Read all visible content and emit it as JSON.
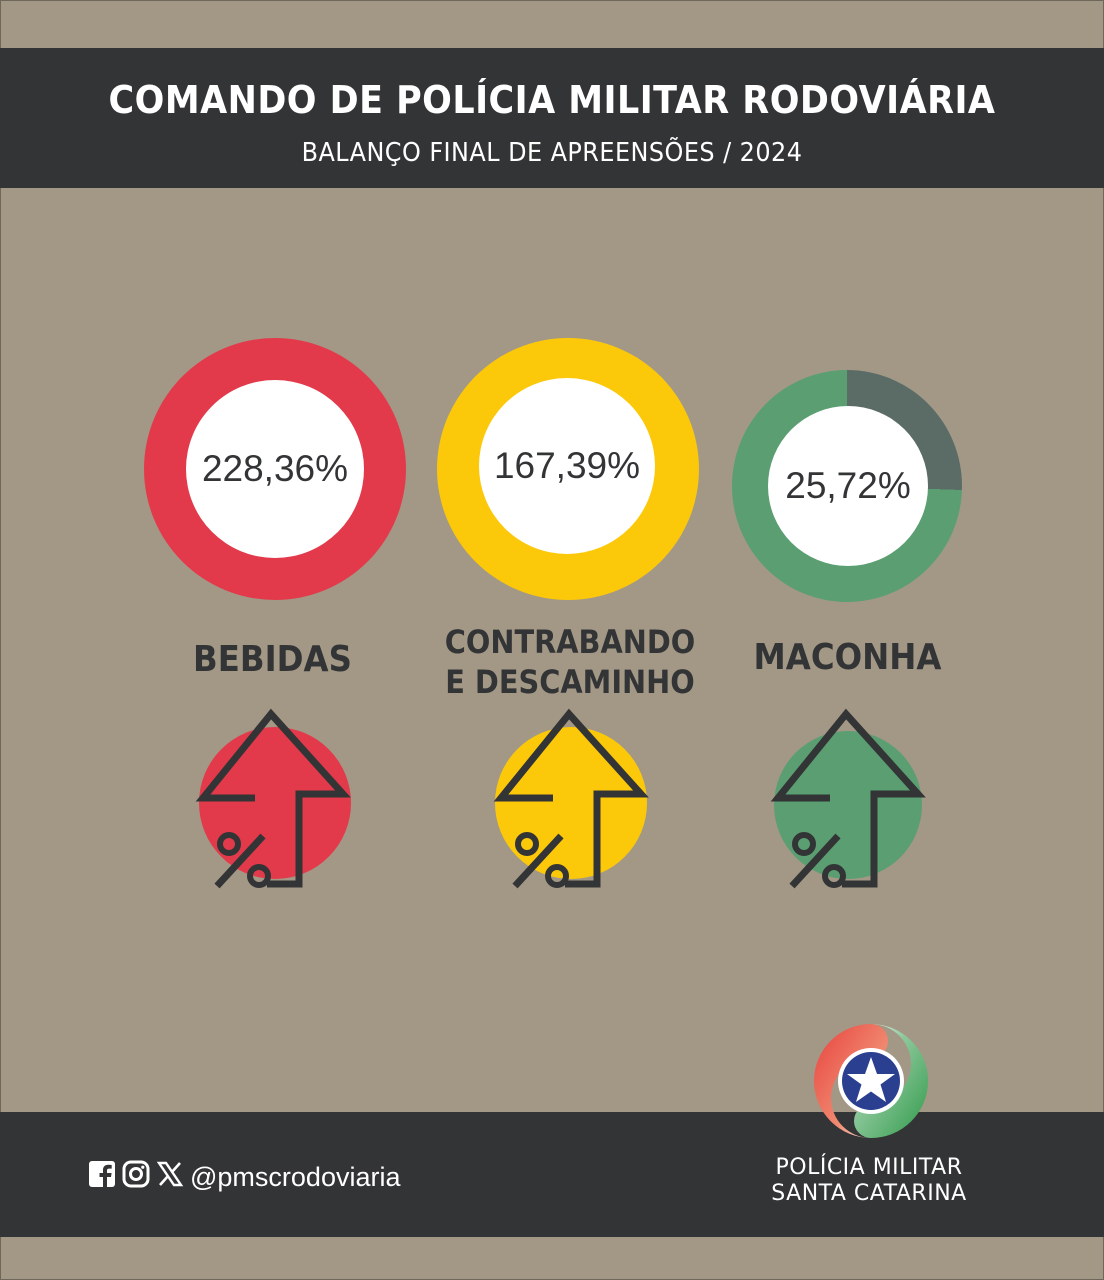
{
  "header": {
    "title": "COMANDO DE POLÍCIA MILITAR RODOVIÁRIA",
    "subtitle": "BALANÇO FINAL DE APREENSÕES / 2024"
  },
  "categories": [
    {
      "label_lines": [
        "BEBIDAS"
      ],
      "percent_text": "228,36%",
      "percent_value": 228.36,
      "color": "#e23a4b",
      "trend": "up"
    },
    {
      "label_lines": [
        "CONTRABANDO",
        "E DESCAMINHO"
      ],
      "percent_text": "167,39%",
      "percent_value": 167.39,
      "color": "#fcc80a",
      "trend": "up"
    },
    {
      "label_lines": [
        "MACONHA"
      ],
      "percent_text": "25,72%",
      "percent_value": 25.72,
      "color": "#5a9e72",
      "secondary_color": "#5b6c66",
      "trend": "up"
    }
  ],
  "footer": {
    "social_icons": [
      "facebook-icon",
      "instagram-icon",
      "x-icon"
    ],
    "handle": "@pmscrodoviaria",
    "org_name_line1": "POLÍCIA MILITAR",
    "org_name_line2": "SANTA CATARINA"
  },
  "colors": {
    "background": "#a39886",
    "bar": "#333436",
    "text_dark": "#333436"
  }
}
